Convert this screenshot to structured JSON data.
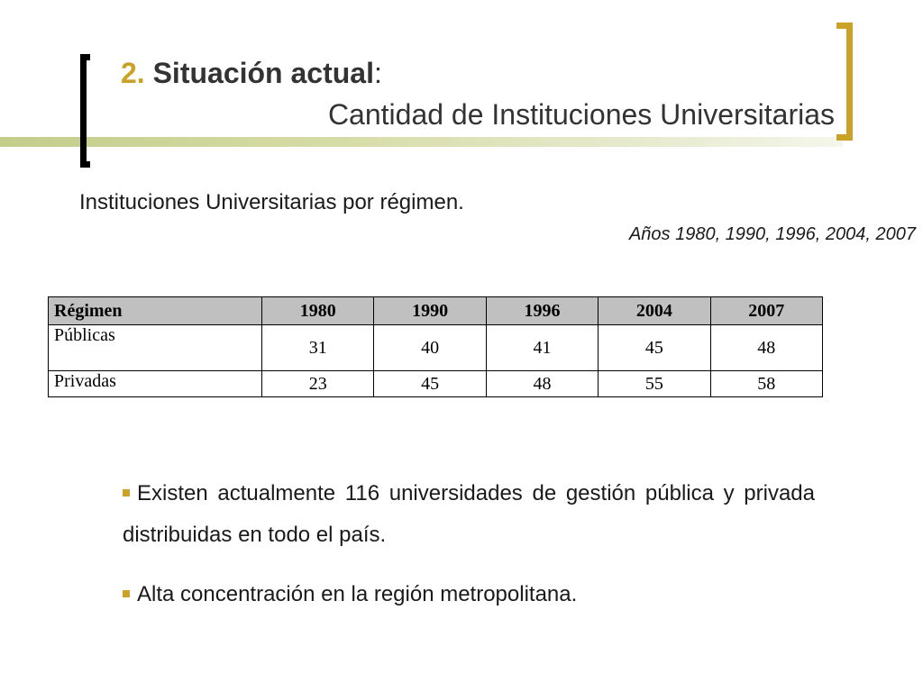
{
  "header": {
    "number": "2.",
    "title": "Situación actual",
    "colon": ":",
    "subtitle": "Cantidad de Instituciones Universitarias"
  },
  "content": {
    "heading": "Instituciones Universitarias por régimen.",
    "years": "Años 1980, 1990, 1996, 2004, 2007"
  },
  "table": {
    "headers": [
      "Régimen",
      "1980",
      "1990",
      "1996",
      "2004",
      "2007"
    ],
    "rows": [
      {
        "label": "Públicas",
        "values": [
          "31",
          "40",
          "41",
          "45",
          "48"
        ]
      },
      {
        "label": "Privadas",
        "values": [
          "23",
          "45",
          "48",
          "55",
          "58"
        ]
      }
    ]
  },
  "bullets": [
    "Existen actualmente 116 universidades de gestión pública y privada distribuidas en todo el país.",
    "Alta concentración en la región metropolitana."
  ],
  "colors": {
    "accent": "#c9a227",
    "bracket_left": "#000000",
    "header_fill": "#c0c0c0"
  }
}
